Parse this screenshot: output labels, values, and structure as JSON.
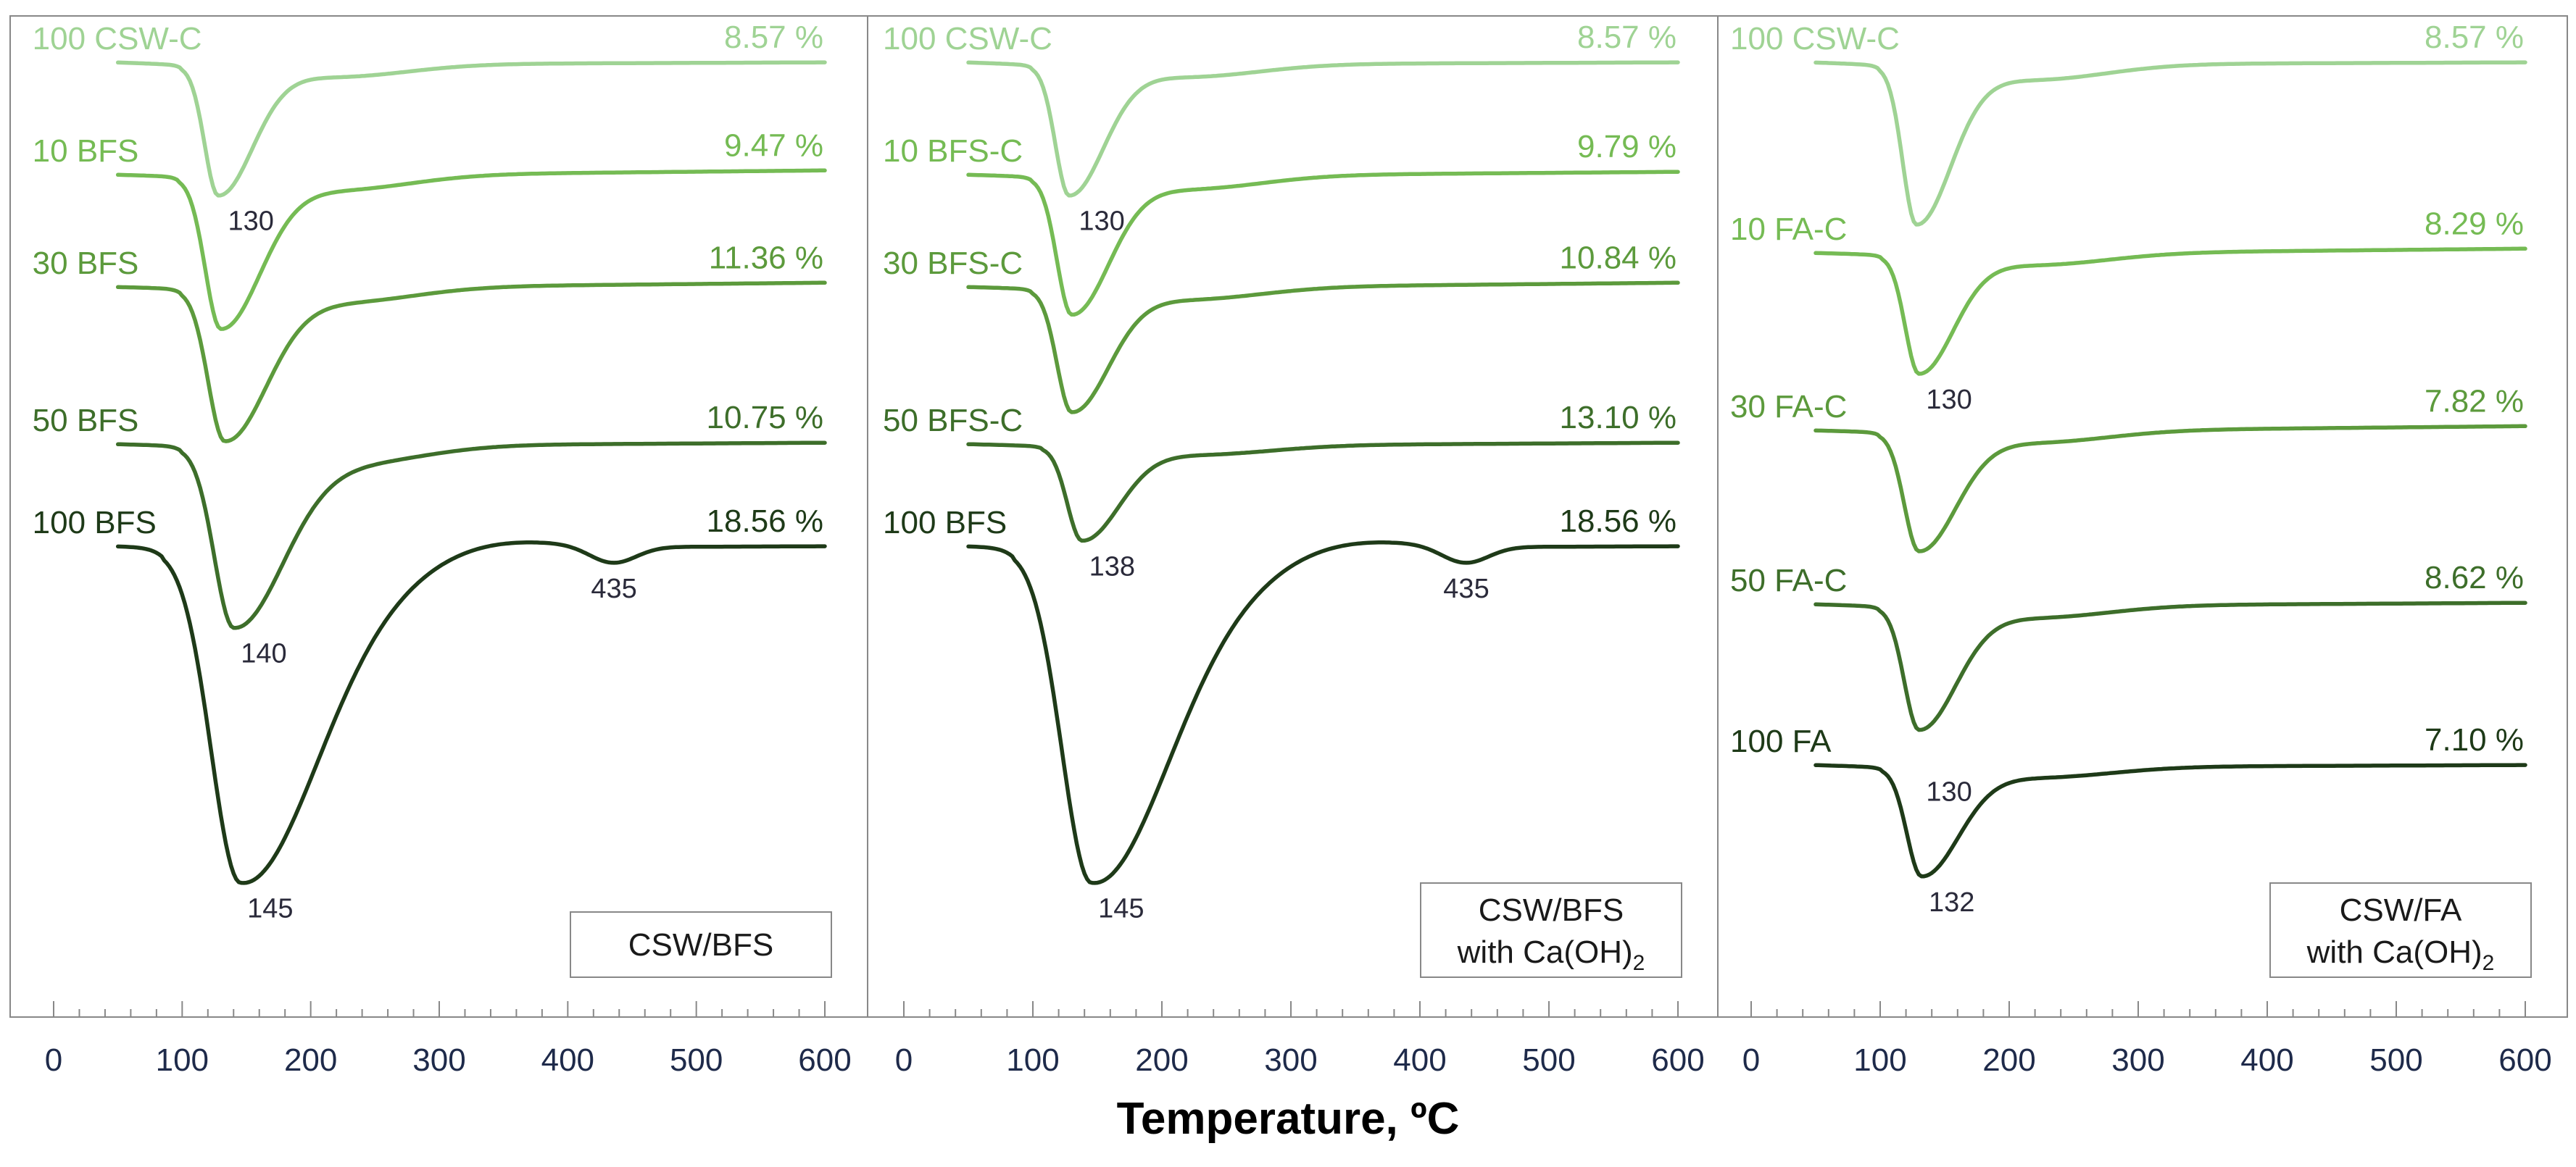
{
  "figure": {
    "xlabel": "Temperature, ºC"
  },
  "colors": {
    "c100csw": "#9fd394",
    "c10": "#75bb54",
    "c30": "#5c9a3c",
    "c50": "#3d6e2a",
    "c100": "#1e3a18",
    "frame": "#888888",
    "text_dark": "#1a1a1a",
    "peak_text": "#2a2a3a"
  },
  "chart_data": [
    {
      "type": "line",
      "panel_id": "panel1",
      "box_label": [
        "CSW/BFS"
      ],
      "xlim": [
        0,
        600
      ],
      "xticks": [
        0,
        100,
        200,
        300,
        400,
        500,
        600
      ],
      "xlabel": "Temperature, ºC",
      "series": [
        {
          "name": "100 CSW-C",
          "color_key": "c100csw",
          "mass_loss": "8.57 %",
          "baseline": 0,
          "peak_x": 128,
          "depth": 0.9,
          "width": 14,
          "rise": 0.02
        },
        {
          "name": "10 BFS",
          "color_key": "c10",
          "mass_loss": "9.47 %",
          "baseline": 1,
          "peak_x": 130,
          "depth": 1.05,
          "width": 16,
          "rise": 0.05
        },
        {
          "name": "30 BFS",
          "color_key": "c30",
          "mass_loss": "11.36 %",
          "baseline": 2,
          "peak_x": 133,
          "depth": 1.05,
          "width": 17,
          "rise": 0.05
        },
        {
          "name": "50 BFS",
          "color_key": "c50",
          "mass_loss": "10.75 %",
          "baseline": 3,
          "peak_x": 140,
          "depth": 1.25,
          "width": 20,
          "rise": 0.03
        },
        {
          "name": "100 BFS",
          "color_key": "c100",
          "mass_loss": "18.56 %",
          "baseline": 4,
          "peak_x": 145,
          "depth": 2.3,
          "width": 30,
          "rise": 0.02,
          "minor_peak": {
            "x": 435,
            "depth": 0.12,
            "width": 18
          }
        }
      ],
      "annotations": [
        {
          "text": "130",
          "x": 130,
          "series": 0
        },
        {
          "text": "140",
          "x": 140,
          "series": 3
        },
        {
          "text": "145",
          "x": 145,
          "series": 4
        },
        {
          "text": "435",
          "x": 435,
          "series": 4
        }
      ]
    },
    {
      "type": "line",
      "panel_id": "panel2",
      "box_label": [
        "CSW/BFS",
        "with Ca(OH)2"
      ],
      "xlim": [
        0,
        600
      ],
      "xticks": [
        0,
        100,
        200,
        300,
        400,
        500,
        600
      ],
      "xlabel": "Temperature, ºC",
      "series": [
        {
          "name": "100 CSW-C",
          "color_key": "c100csw",
          "mass_loss": "8.57 %",
          "baseline": 0,
          "peak_x": 128,
          "depth": 0.9,
          "width": 14,
          "rise": 0.02
        },
        {
          "name": "10 BFS-C",
          "color_key": "c10",
          "mass_loss": "9.79 %",
          "baseline": 1,
          "peak_x": 130,
          "depth": 0.95,
          "width": 15,
          "rise": 0.04
        },
        {
          "name": "30 BFS-C",
          "color_key": "c30",
          "mass_loss": "10.84 %",
          "baseline": 2,
          "peak_x": 130,
          "depth": 0.85,
          "width": 15,
          "rise": 0.05
        },
        {
          "name": "50 BFS-C",
          "color_key": "c50",
          "mass_loss": "13.10 %",
          "baseline": 3,
          "peak_x": 138,
          "depth": 0.65,
          "width": 15,
          "rise": 0.03
        },
        {
          "name": "100 BFS",
          "color_key": "c100",
          "mass_loss": "18.56 %",
          "baseline": 4,
          "peak_x": 145,
          "depth": 2.3,
          "width": 30,
          "rise": 0.02,
          "minor_peak": {
            "x": 435,
            "depth": 0.12,
            "width": 18
          }
        }
      ],
      "annotations": [
        {
          "text": "130",
          "x": 130,
          "series": 0
        },
        {
          "text": "138",
          "x": 138,
          "series": 3
        },
        {
          "text": "145",
          "x": 145,
          "series": 4
        },
        {
          "text": "435",
          "x": 435,
          "series": 4
        }
      ]
    },
    {
      "type": "line",
      "panel_id": "panel3",
      "box_label": [
        "CSW/FA",
        "with Ca(OH)2"
      ],
      "xlim": [
        0,
        600
      ],
      "xticks": [
        0,
        100,
        200,
        300,
        400,
        500,
        600
      ],
      "xlabel": "Temperature, ºC",
      "series": [
        {
          "name": "100 CSW-C",
          "color_key": "c100csw",
          "mass_loss": "8.57 %",
          "baseline": 0,
          "peak_x": 128,
          "depth": 1.1,
          "width": 14,
          "rise": 0.02
        },
        {
          "name": "10 FA-C",
          "color_key": "c10",
          "mass_loss": "8.29 %",
          "baseline": 1.4,
          "peak_x": 130,
          "depth": 0.82,
          "width": 14,
          "rise": 0.05
        },
        {
          "name": "30 FA-C",
          "color_key": "c30",
          "mass_loss": "7.82 %",
          "baseline": 2.4,
          "peak_x": 130,
          "depth": 0.82,
          "width": 15,
          "rise": 0.05
        },
        {
          "name": "50 FA-C",
          "color_key": "c50",
          "mass_loss": "8.62 %",
          "baseline": 3.5,
          "peak_x": 130,
          "depth": 0.85,
          "width": 15,
          "rise": 0.03
        },
        {
          "name": "100 FA",
          "color_key": "c100",
          "mass_loss": "7.10 %",
          "baseline": 4.5,
          "peak_x": 132,
          "depth": 0.75,
          "width": 15,
          "rise": 0.02
        }
      ],
      "annotations": [
        {
          "text": "130",
          "x": 130,
          "series": 1
        },
        {
          "text": "130",
          "x": 130,
          "series": 4,
          "pos": "mid"
        },
        {
          "text": "132",
          "x": 132,
          "series": 4
        }
      ]
    }
  ]
}
